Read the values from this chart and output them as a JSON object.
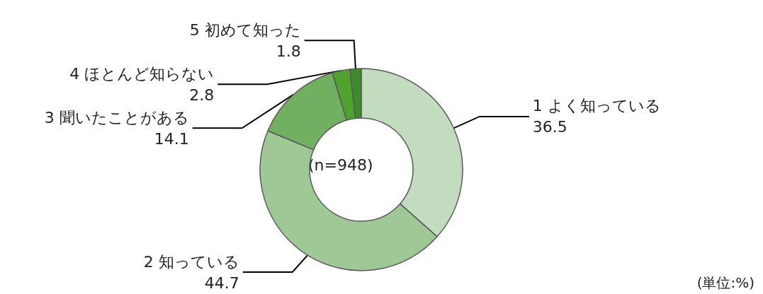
{
  "chart_data": {
    "type": "donut",
    "categories": [
      "1 よく知っている",
      "2 知っている",
      "3 聞いたことがある",
      "4 ほとんど知らない",
      "5 初めて知った"
    ],
    "values": [
      36.5,
      44.7,
      14.1,
      2.8,
      1.8
    ],
    "colors": [
      "#c3dbbe",
      "#a0c897",
      "#70b060",
      "#4ea22d",
      "#3f8b2c"
    ],
    "data_labels": true,
    "legend": false,
    "annotations": [
      "(n=948)",
      "(単位:%)"
    ]
  }
}
